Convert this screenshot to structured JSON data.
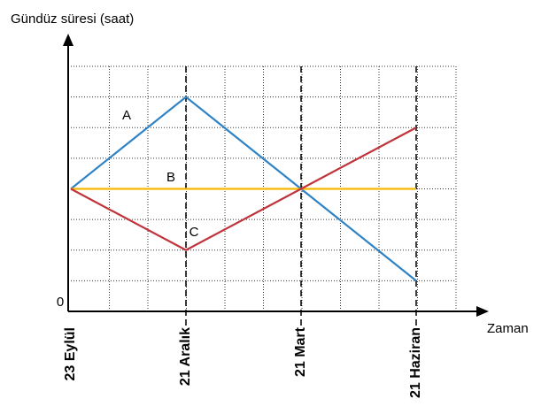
{
  "chart_data": {
    "type": "line",
    "y_label": "Gündüz süresi (saat)",
    "x_label": "Zaman",
    "categories": [
      "23 Eylül",
      "21 Aralık",
      "21 Mart",
      "21 Haziran"
    ],
    "series": [
      {
        "name": "A",
        "color": "#2f83c5",
        "values": [
          4,
          7,
          4,
          1
        ]
      },
      {
        "name": "B",
        "color": "#f5b800",
        "values": [
          4,
          4,
          4,
          4
        ]
      },
      {
        "name": "C",
        "color": "#c0343c",
        "values": [
          4,
          2,
          4,
          6
        ]
      }
    ],
    "ylim": [
      0,
      8
    ],
    "yticks": [
      0
    ]
  }
}
